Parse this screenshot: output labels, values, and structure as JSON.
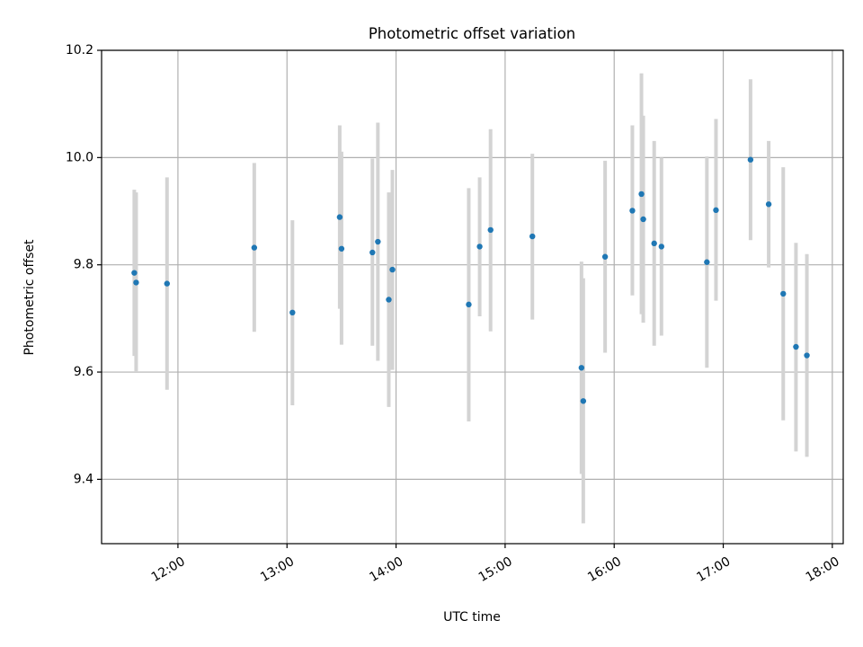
{
  "chart_data": {
    "type": "scatter",
    "title": "Photometric offset variation",
    "xlabel": "UTC time",
    "ylabel": "Photometric offset",
    "x_ticks": [
      "12:00",
      "13:00",
      "14:00",
      "15:00",
      "16:00",
      "17:00",
      "18:00"
    ],
    "y_ticks": [
      "9.4",
      "9.6",
      "9.8",
      "10.0",
      "10.2"
    ],
    "xlim": [
      "11:18",
      "18:06"
    ],
    "ylim": [
      9.28,
      10.2
    ],
    "grid": true,
    "colors": {
      "point": "#1f77b4",
      "errorbar": "#d3d3d3"
    },
    "series": [
      {
        "points": [
          {
            "t": "11:36",
            "y": 9.785,
            "lo": 9.63,
            "hi": 9.94
          },
          {
            "t": "11:37",
            "y": 9.767,
            "lo": 9.6,
            "hi": 9.935
          },
          {
            "t": "11:54",
            "y": 9.765,
            "lo": 9.567,
            "hi": 9.963
          },
          {
            "t": "12:42",
            "y": 9.832,
            "lo": 9.675,
            "hi": 9.99
          },
          {
            "t": "13:03",
            "y": 9.711,
            "lo": 9.538,
            "hi": 9.883
          },
          {
            "t": "13:29",
            "y": 9.889,
            "lo": 9.718,
            "hi": 10.06
          },
          {
            "t": "13:30",
            "y": 9.83,
            "lo": 9.651,
            "hi": 10.011
          },
          {
            "t": "13:47",
            "y": 9.823,
            "lo": 9.649,
            "hi": 9.998
          },
          {
            "t": "13:50",
            "y": 9.843,
            "lo": 9.621,
            "hi": 10.065
          },
          {
            "t": "13:56",
            "y": 9.735,
            "lo": 9.535,
            "hi": 9.935
          },
          {
            "t": "13:58",
            "y": 9.791,
            "lo": 9.604,
            "hi": 9.977
          },
          {
            "t": "14:40",
            "y": 9.726,
            "lo": 9.508,
            "hi": 9.943
          },
          {
            "t": "14:46",
            "y": 9.834,
            "lo": 9.704,
            "hi": 9.963
          },
          {
            "t": "14:52",
            "y": 9.865,
            "lo": 9.676,
            "hi": 10.053
          },
          {
            "t": "15:15",
            "y": 9.853,
            "lo": 9.698,
            "hi": 10.007
          },
          {
            "t": "15:42",
            "y": 9.608,
            "lo": 9.41,
            "hi": 9.806
          },
          {
            "t": "15:43",
            "y": 9.546,
            "lo": 9.318,
            "hi": 9.775
          },
          {
            "t": "15:55",
            "y": 9.815,
            "lo": 9.636,
            "hi": 9.994
          },
          {
            "t": "16:10",
            "y": 9.901,
            "lo": 9.743,
            "hi": 10.06
          },
          {
            "t": "16:15",
            "y": 9.932,
            "lo": 9.708,
            "hi": 10.157
          },
          {
            "t": "16:16",
            "y": 9.885,
            "lo": 9.692,
            "hi": 10.078
          },
          {
            "t": "16:22",
            "y": 9.84,
            "lo": 9.649,
            "hi": 10.031
          },
          {
            "t": "16:26",
            "y": 9.834,
            "lo": 9.668,
            "hi": 10.0
          },
          {
            "t": "16:51",
            "y": 9.805,
            "lo": 9.608,
            "hi": 10.002
          },
          {
            "t": "16:56",
            "y": 9.902,
            "lo": 9.733,
            "hi": 10.072
          },
          {
            "t": "17:15",
            "y": 9.996,
            "lo": 9.846,
            "hi": 10.146
          },
          {
            "t": "17:25",
            "y": 9.913,
            "lo": 9.795,
            "hi": 10.031
          },
          {
            "t": "17:33",
            "y": 9.746,
            "lo": 9.51,
            "hi": 9.982
          },
          {
            "t": "17:40",
            "y": 9.647,
            "lo": 9.452,
            "hi": 9.841
          },
          {
            "t": "17:46",
            "y": 9.631,
            "lo": 9.442,
            "hi": 9.82
          }
        ]
      }
    ]
  }
}
